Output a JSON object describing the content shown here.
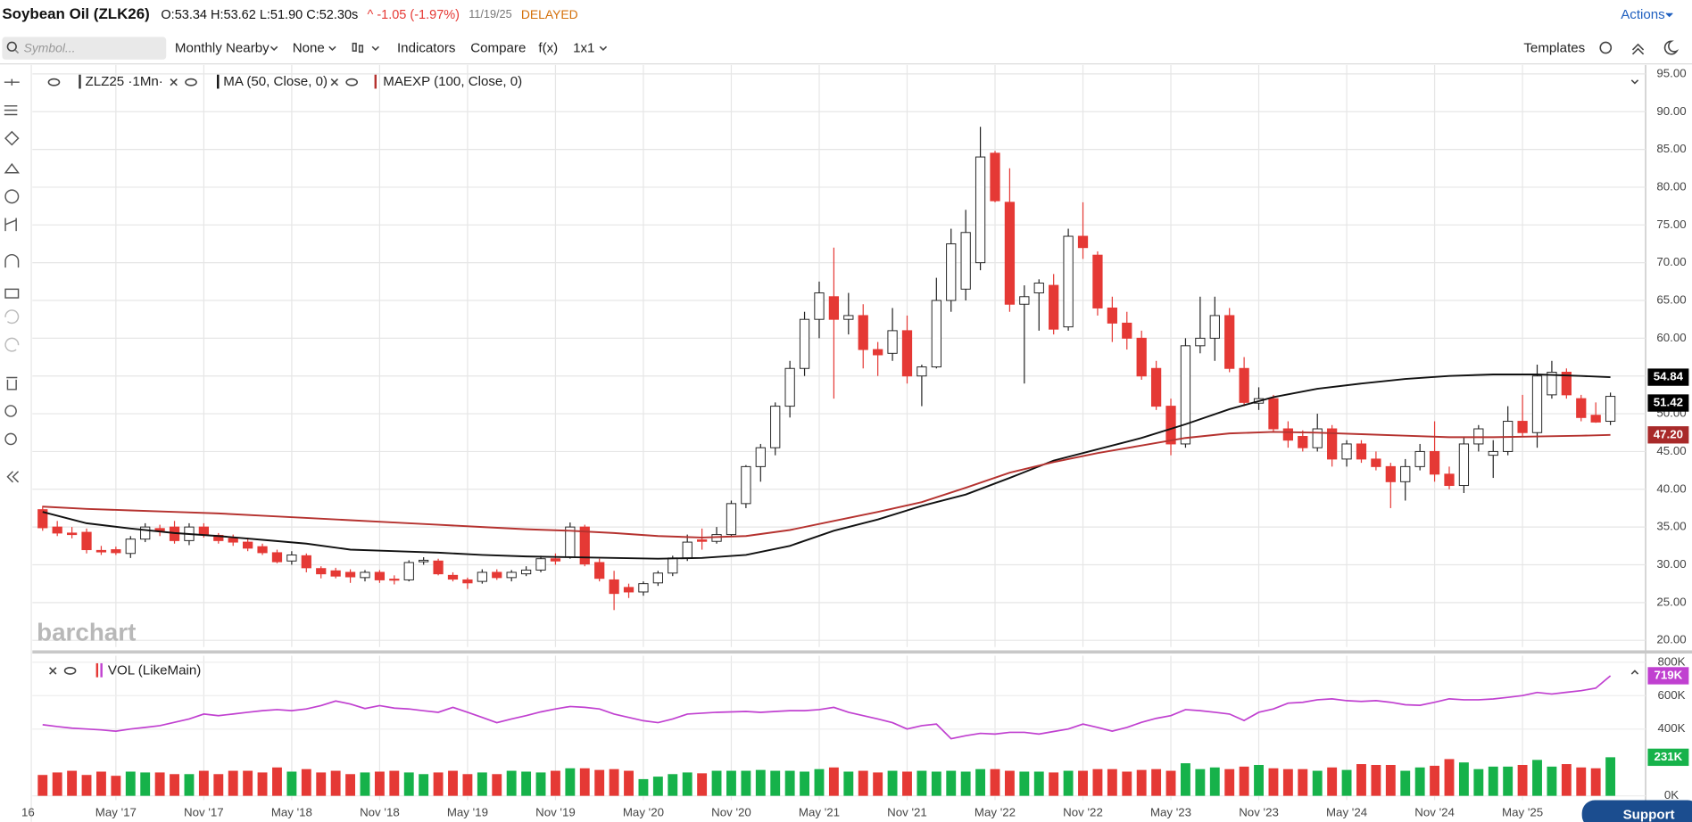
{
  "header": {
    "title": "Soybean Oil (ZLK26)",
    "ohlc": "O:53.34 H:53.62 L:51.90 C:52.30s",
    "change": "^ -1.05 (-1.97%)",
    "date": "11/19/25",
    "status": "DELAYED",
    "actions": "Actions"
  },
  "toolbar": {
    "search_placeholder": "Symbol...",
    "items": [
      "Monthly Nearby",
      "None",
      "Indicators",
      "Compare",
      "f(x)",
      "1x1"
    ],
    "templates": "Templates"
  },
  "brand": "barchart",
  "support": "Support",
  "chart_data": [
    {
      "type": "candlestick",
      "name": "ZLZ25 ·1Mn·",
      "up_color": "#ffffff",
      "down_color": "#e53935",
      "open": [
        37.3,
        35.0,
        34.2,
        34.3,
        31.9,
        32.0,
        31.5,
        33.4,
        34.8,
        35.0,
        33.2,
        35.0,
        33.9,
        33.5,
        33.0,
        32.4,
        31.6,
        30.5,
        31.2,
        29.5,
        29.2,
        29.0,
        28.3,
        29.0,
        28.1,
        28.0,
        30.4,
        30.5,
        28.6,
        28.0,
        27.8,
        29.0,
        28.3,
        28.8,
        29.3,
        30.8,
        31.0,
        35.0,
        30.3,
        28.0,
        27.0,
        26.4,
        27.6,
        28.9,
        30.9,
        33.3,
        33.1,
        34.0,
        38.1,
        43.0,
        45.5,
        51.0,
        56.0,
        62.5,
        65.5,
        62.5,
        63.0,
        58.5,
        58.0,
        61.0,
        55.0,
        56.2,
        65.0,
        66.5,
        70.0,
        84.5,
        78.0,
        64.5,
        66.0,
        67.0,
        61.5,
        73.5,
        71.0,
        64.0,
        62.0,
        60.0,
        56.0,
        51.0,
        46.0,
        59.0,
        60.0,
        63.0,
        56.0,
        51.4,
        52.0,
        48.0,
        47.0,
        45.5,
        48.0,
        44.0,
        46.0,
        44.0,
        43.0,
        41.0,
        43.0,
        45.0,
        42.0,
        40.5,
        46.0,
        44.5,
        45.0,
        49.0,
        47.5,
        52.5,
        55.5,
        52.0,
        49.8,
        49.0
      ],
      "high": [
        37.8,
        35.8,
        35.0,
        34.8,
        32.5,
        32.4,
        33.8,
        35.5,
        35.3,
        35.8,
        35.5,
        35.5,
        34.2,
        34.0,
        33.6,
        32.8,
        32.0,
        31.8,
        31.5,
        29.8,
        29.6,
        29.4,
        29.3,
        29.3,
        28.6,
        30.6,
        31.0,
        30.8,
        29.0,
        28.3,
        29.4,
        29.4,
        29.3,
        29.8,
        31.2,
        31.5,
        35.6,
        35.3,
        30.8,
        29.2,
        27.5,
        27.8,
        29.2,
        31.2,
        34.0,
        34.8,
        35.0,
        38.5,
        43.2,
        46.0,
        51.5,
        57.0,
        63.5,
        67.5,
        72.0,
        66.0,
        64.5,
        59.5,
        64.0,
        63.0,
        56.5,
        68.0,
        74.5,
        77.0,
        88.0,
        84.8,
        82.5,
        67.0,
        67.8,
        68.5,
        74.5,
        78.0,
        71.5,
        65.5,
        63.5,
        61.0,
        57.0,
        52.0,
        60.0,
        65.5,
        65.5,
        64.0,
        57.5,
        53.5,
        52.5,
        49.0,
        47.8,
        50.0,
        48.5,
        46.5,
        46.5,
        45.0,
        43.5,
        44.0,
        46.0,
        49.0,
        43.0,
        47.0,
        48.5,
        46.5,
        51.0,
        52.5,
        56.5,
        57.0,
        56.0,
        52.5,
        51.5,
        52.8
      ],
      "low": [
        34.5,
        33.8,
        33.5,
        31.5,
        31.3,
        31.3,
        30.9,
        33.0,
        33.8,
        32.8,
        32.6,
        33.6,
        32.8,
        32.5,
        31.8,
        31.3,
        30.2,
        30.0,
        29.0,
        28.2,
        28.2,
        27.6,
        27.8,
        27.6,
        27.4,
        27.8,
        30.0,
        28.6,
        27.8,
        26.8,
        27.5,
        28.0,
        27.8,
        28.5,
        29.0,
        30.0,
        30.8,
        29.8,
        27.8,
        24.0,
        25.6,
        25.9,
        27.2,
        28.5,
        30.5,
        32.0,
        32.8,
        33.8,
        37.5,
        41.0,
        44.5,
        49.5,
        55.0,
        60.0,
        52.0,
        60.5,
        56.0,
        55.0,
        57.0,
        54.0,
        51.0,
        56.0,
        63.5,
        65.0,
        69.0,
        78.0,
        63.5,
        54.0,
        61.0,
        60.5,
        61.0,
        70.5,
        63.0,
        59.5,
        58.5,
        54.5,
        50.5,
        44.5,
        45.5,
        58.0,
        57.0,
        55.5,
        51.0,
        50.5,
        47.5,
        45.5,
        45.0,
        45.0,
        43.0,
        43.0,
        43.5,
        42.5,
        37.5,
        38.5,
        42.5,
        41.0,
        40.0,
        39.5,
        45.0,
        41.5,
        44.5,
        47.0,
        45.5,
        52.0,
        52.0,
        49.0,
        48.8,
        48.5
      ],
      "close": [
        34.9,
        34.2,
        34.0,
        32.0,
        31.7,
        31.6,
        33.4,
        35.0,
        34.5,
        33.2,
        35.0,
        34.0,
        33.2,
        33.0,
        32.2,
        31.6,
        30.4,
        31.3,
        29.6,
        28.8,
        28.5,
        28.4,
        29.0,
        28.0,
        28.0,
        30.3,
        30.6,
        28.8,
        28.1,
        27.6,
        29.0,
        28.3,
        29.0,
        29.3,
        30.8,
        30.5,
        35.0,
        30.1,
        28.2,
        26.2,
        26.4,
        27.5,
        28.9,
        30.9,
        33.0,
        33.1,
        34.0,
        38.1,
        43.0,
        45.5,
        51.0,
        56.0,
        62.5,
        66.0,
        62.5,
        63.0,
        58.5,
        57.8,
        61.0,
        55.0,
        56.2,
        65.0,
        72.5,
        74.0,
        84.0,
        78.2,
        64.5,
        65.5,
        67.3,
        61.2,
        73.5,
        72.0,
        64.0,
        62.0,
        60.0,
        55.0,
        51.0,
        46.0,
        59.0,
        60.0,
        63.0,
        56.0,
        51.5,
        52.0,
        48.0,
        46.5,
        45.5,
        48.0,
        44.0,
        46.0,
        44.0,
        43.0,
        41.0,
        43.0,
        45.0,
        42.0,
        40.5,
        46.0,
        48.0,
        45.0,
        49.0,
        47.5,
        55.0,
        55.5,
        52.5,
        49.5,
        48.9,
        52.3
      ],
      "lines": [
        {
          "name": "MA (50, Close, 0)",
          "color": "#111111",
          "x": [
            0,
            3,
            6,
            9,
            12,
            15,
            18,
            21,
            24,
            27,
            30,
            33,
            36,
            39,
            42,
            45,
            48,
            51,
            54,
            57,
            60,
            63,
            66,
            69,
            72,
            75,
            78,
            81,
            84,
            87,
            90,
            93,
            96,
            99,
            102,
            105,
            107
          ],
          "values": [
            37.0,
            35.5,
            34.8,
            34.2,
            33.8,
            33.3,
            32.8,
            32.0,
            31.8,
            31.6,
            31.3,
            31.1,
            31.0,
            30.9,
            30.8,
            30.9,
            31.3,
            32.5,
            34.5,
            36.0,
            37.8,
            39.3,
            41.5,
            43.8,
            45.3,
            46.8,
            48.6,
            50.6,
            52.2,
            53.3,
            54.0,
            54.6,
            55.0,
            55.2,
            55.2,
            55.0,
            54.84
          ]
        },
        {
          "name": "MAEXP (100, Close, 0)",
          "color": "#b5322f",
          "x": [
            0,
            3,
            6,
            9,
            12,
            15,
            18,
            21,
            24,
            27,
            30,
            33,
            36,
            39,
            42,
            45,
            48,
            51,
            54,
            57,
            60,
            63,
            66,
            69,
            72,
            75,
            78,
            81,
            84,
            87,
            90,
            93,
            96,
            99,
            102,
            105,
            107
          ],
          "values": [
            37.7,
            37.4,
            37.2,
            37.0,
            36.8,
            36.5,
            36.2,
            35.9,
            35.6,
            35.3,
            35.0,
            34.7,
            34.5,
            34.2,
            33.8,
            33.6,
            33.8,
            34.6,
            35.8,
            37.0,
            38.3,
            40.2,
            42.2,
            43.6,
            44.8,
            45.8,
            46.8,
            47.4,
            47.6,
            47.5,
            47.3,
            47.1,
            46.9,
            46.9,
            47.0,
            47.1,
            47.2
          ]
        }
      ],
      "badges": [
        {
          "value": 54.84,
          "label": "54.84",
          "color": "#000000"
        },
        {
          "value": 51.42,
          "label": "51.42",
          "color": "#000000"
        },
        {
          "value": 47.2,
          "label": "47.20",
          "color": "#a82a2a"
        }
      ],
      "xlim": [
        -0.7,
        109.4
      ],
      "xticks": [
        {
          "value": -1,
          "label": "16"
        },
        {
          "value": 5,
          "label": "May '17"
        },
        {
          "value": 11,
          "label": "Nov '17"
        },
        {
          "value": 17,
          "label": "May '18"
        },
        {
          "value": 23,
          "label": "Nov '18"
        },
        {
          "value": 29,
          "label": "May '19"
        },
        {
          "value": 35,
          "label": "Nov '19"
        },
        {
          "value": 41,
          "label": "May '20"
        },
        {
          "value": 47,
          "label": "Nov '20"
        },
        {
          "value": 53,
          "label": "May '21"
        },
        {
          "value": 59,
          "label": "Nov '21"
        },
        {
          "value": 65,
          "label": "May '22"
        },
        {
          "value": 71,
          "label": "Nov '22"
        },
        {
          "value": 77,
          "label": "May '23"
        },
        {
          "value": 83,
          "label": "Nov '23"
        },
        {
          "value": 89,
          "label": "May '24"
        },
        {
          "value": 95,
          "label": "Nov '24"
        },
        {
          "value": 101,
          "label": "May '25"
        }
      ],
      "ylim": [
        19.1,
        95.9
      ],
      "yticks": [
        {
          "value": 20,
          "label": "20.00"
        },
        {
          "value": 25,
          "label": "25.00"
        },
        {
          "value": 30,
          "label": "30.00"
        },
        {
          "value": 35,
          "label": "35.00"
        },
        {
          "value": 40,
          "label": "40.00"
        },
        {
          "value": 45,
          "label": "45.00"
        },
        {
          "value": 50,
          "label": "50.00"
        },
        {
          "value": 55,
          "label": "55.00"
        },
        {
          "value": 60,
          "label": "60.00"
        },
        {
          "value": 65,
          "label": "65.00"
        },
        {
          "value": 70,
          "label": "70.00"
        },
        {
          "value": 75,
          "label": "75.00"
        },
        {
          "value": 80,
          "label": "80.00"
        },
        {
          "value": 85,
          "label": "85.00"
        },
        {
          "value": 90,
          "label": "90.00"
        },
        {
          "value": 95,
          "label": "95.00"
        }
      ],
      "grid": true
    },
    {
      "type": "bar",
      "name": "VOL (LikeMain)",
      "up_color": "#16b24a",
      "down_color": "#e53935",
      "values": [
        125,
        140,
        150,
        125,
        145,
        120,
        145,
        140,
        140,
        130,
        130,
        150,
        130,
        150,
        150,
        140,
        170,
        145,
        160,
        140,
        150,
        130,
        140,
        145,
        150,
        140,
        130,
        140,
        150,
        130,
        140,
        130,
        150,
        145,
        140,
        150,
        165,
        165,
        155,
        160,
        150,
        100,
        115,
        130,
        140,
        135,
        150,
        150,
        150,
        155,
        150,
        150,
        145,
        160,
        170,
        145,
        150,
        140,
        150,
        145,
        150,
        145,
        150,
        145,
        160,
        160,
        150,
        145,
        145,
        140,
        150,
        150,
        160,
        160,
        145,
        155,
        160,
        150,
        195,
        160,
        170,
        160,
        175,
        185,
        165,
        160,
        160,
        150,
        170,
        155,
        190,
        185,
        185,
        150,
        170,
        180,
        220,
        200,
        160,
        175,
        175,
        185,
        215,
        175,
        190,
        170,
        165,
        231
      ],
      "line": {
        "color": "#c040d0",
        "values": [
          426,
          415,
          405,
          400,
          395,
          387,
          400,
          410,
          420,
          440,
          460,
          490,
          480,
          490,
          500,
          510,
          516,
          510,
          520,
          540,
          568,
          550,
          523,
          540,
          525,
          520,
          510,
          500,
          530,
          500,
          470,
          438,
          460,
          480,
          503,
          520,
          535,
          530,
          520,
          490,
          470,
          450,
          438,
          460,
          490,
          495,
          500,
          503,
          505,
          500,
          505,
          510,
          510,
          516,
          530,
          500,
          480,
          460,
          438,
          400,
          420,
          430,
          342,
          360,
          374,
          370,
          380,
          380,
          370,
          385,
          400,
          430,
          410,
          387,
          410,
          440,
          464,
          480,
          516,
          510,
          500,
          490,
          451,
          500,
          520,
          555,
          560,
          575,
          581,
          570,
          565,
          570,
          560,
          545,
          542,
          560,
          581,
          575,
          575,
          580,
          590,
          600,
          619,
          610,
          620,
          630,
          645,
          719
        ]
      },
      "badges": [
        {
          "value": 719,
          "label": "719K",
          "color": "#c040d0"
        },
        {
          "value": 231,
          "label": "231K",
          "color": "#16b24a"
        }
      ],
      "ylim": [
        -26,
        839
      ],
      "yticks": [
        {
          "value": 0,
          "label": "0K"
        },
        {
          "value": 400,
          "label": "400K"
        },
        {
          "value": 600,
          "label": "600K"
        },
        {
          "value": 800,
          "label": "800K"
        }
      ],
      "grid": true
    }
  ]
}
